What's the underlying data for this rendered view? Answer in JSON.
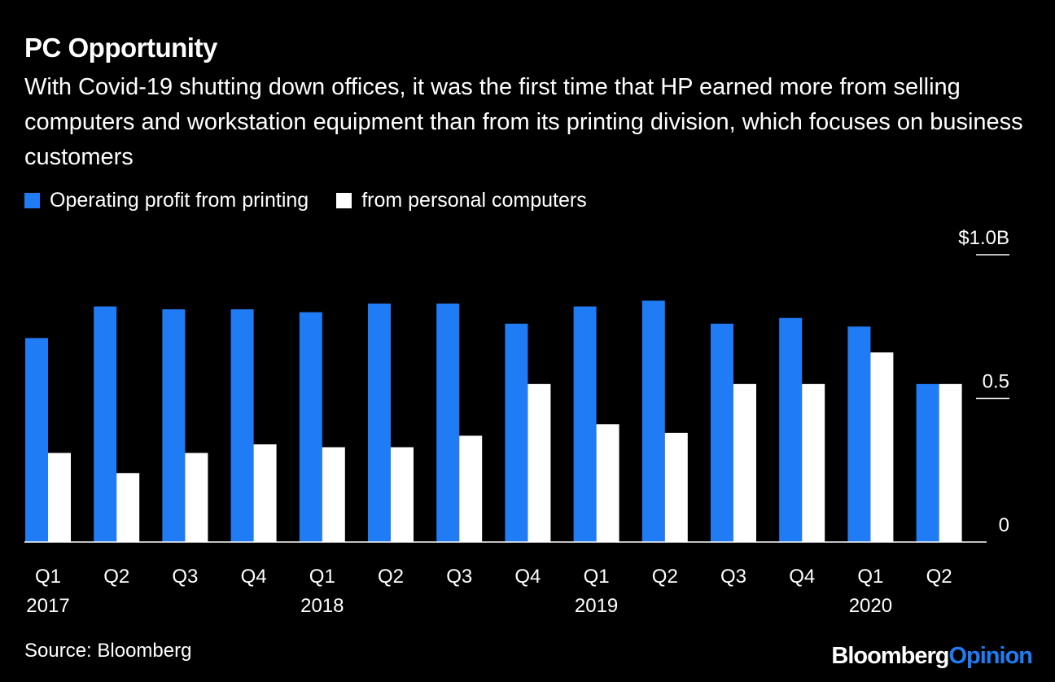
{
  "header": {
    "title": "PC Opportunity",
    "subtitle": "With Covid-19 shutting down offices, it was the first time that HP earned more from selling computers and workstation equipment than from its printing division, which focuses on business customers"
  },
  "legend": {
    "series1_label": "Operating profit from printing",
    "series2_label": "from personal computers"
  },
  "footer": {
    "source": "Source: Bloomberg",
    "brand_part1": "Bloomberg",
    "brand_part2": "Opinion"
  },
  "colors": {
    "printing": "#1f7cf5",
    "pc": "#ffffff",
    "background": "#000000"
  },
  "chart_data": {
    "type": "bar",
    "title": "PC Opportunity",
    "categories": [
      "Q1",
      "Q2",
      "Q3",
      "Q4",
      "Q1",
      "Q2",
      "Q3",
      "Q4",
      "Q1",
      "Q2",
      "Q3",
      "Q4",
      "Q1",
      "Q2"
    ],
    "year_labels": [
      {
        "label": "2017",
        "index": 0
      },
      {
        "label": "2018",
        "index": 4
      },
      {
        "label": "2019",
        "index": 8
      },
      {
        "label": "2020",
        "index": 12
      }
    ],
    "series": [
      {
        "name": "Operating profit from printing",
        "values": [
          0.71,
          0.82,
          0.81,
          0.81,
          0.8,
          0.83,
          0.83,
          0.76,
          0.82,
          0.84,
          0.76,
          0.78,
          0.75,
          0.55
        ]
      },
      {
        "name": "from personal computers",
        "values": [
          0.31,
          0.24,
          0.31,
          0.34,
          0.33,
          0.33,
          0.37,
          0.55,
          0.41,
          0.38,
          0.55,
          0.55,
          0.66,
          0.55
        ]
      }
    ],
    "ylim": [
      0,
      1.0
    ],
    "y_ticks": [
      {
        "value": 0,
        "label": "0"
      },
      {
        "value": 0.5,
        "label": "0.5"
      },
      {
        "value": 1.0,
        "label": "$1.0B"
      }
    ],
    "xlabel": "",
    "ylabel": ""
  }
}
